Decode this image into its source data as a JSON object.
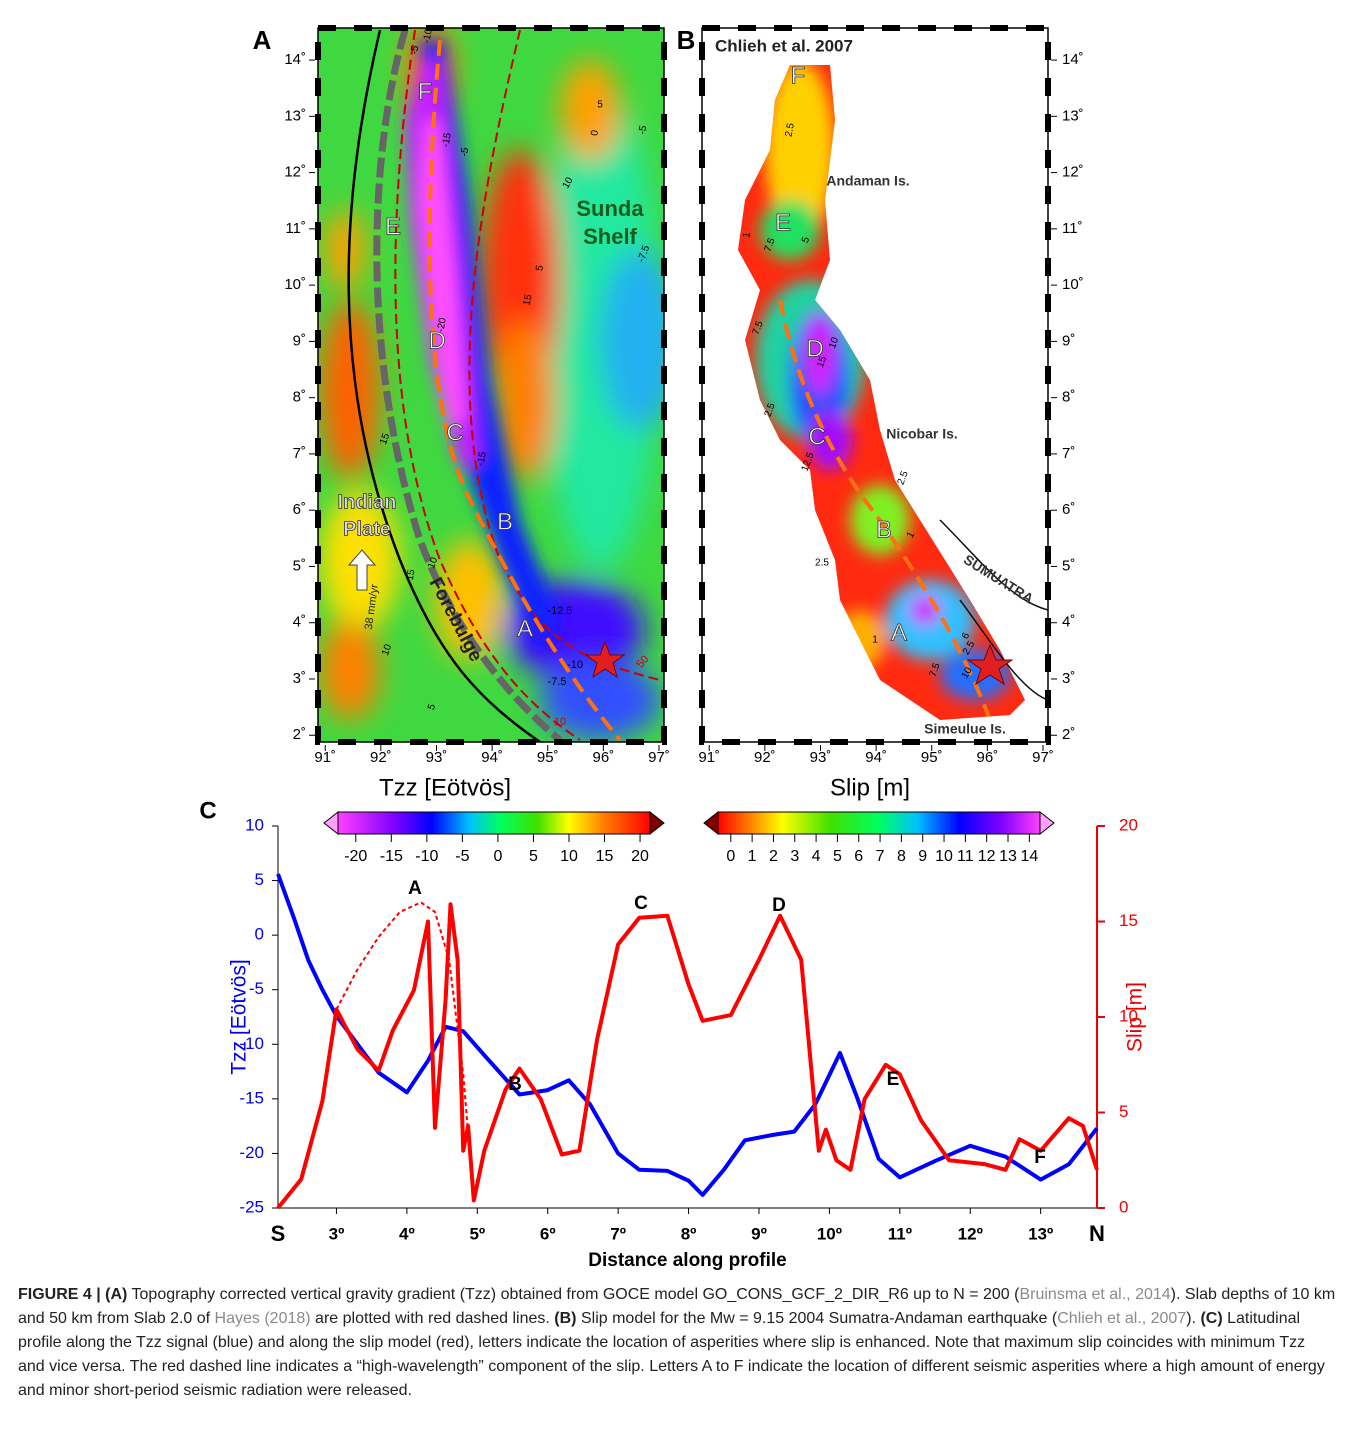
{
  "chart_data": [
    {
      "type": "map",
      "panel": "A",
      "colorbar_title": "Tzz [Eötvös]",
      "xlim": [
        90.87,
        97.09
      ],
      "ylim": [
        1.88,
        14.57
      ],
      "xticks": [
        {
          "value": 91,
          "label": "91˚"
        },
        {
          "value": 92,
          "label": "92˚"
        },
        {
          "value": 93,
          "label": "93˚"
        },
        {
          "value": 94,
          "label": "94˚"
        },
        {
          "value": 95,
          "label": "95˚"
        },
        {
          "value": 96,
          "label": "96˚"
        },
        {
          "value": 97,
          "label": "97˚"
        }
      ],
      "yticks": [
        {
          "value": 2,
          "label": "2˚"
        },
        {
          "value": 3,
          "label": "3˚"
        },
        {
          "value": 4,
          "label": "4˚"
        },
        {
          "value": 5,
          "label": "5˚"
        },
        {
          "value": 6,
          "label": "6˚"
        },
        {
          "value": 7,
          "label": "7˚"
        },
        {
          "value": 8,
          "label": "8˚"
        },
        {
          "value": 9,
          "label": "9˚"
        },
        {
          "value": 10,
          "label": "10˚"
        },
        {
          "value": 11,
          "label": "11˚"
        },
        {
          "value": 12,
          "label": "12˚"
        },
        {
          "value": 13,
          "label": "13˚"
        },
        {
          "value": 14,
          "label": "14˚"
        }
      ],
      "colorbar": {
        "lim": [
          -22.5,
          21.4
        ],
        "ticks": [
          -20,
          -15,
          -10,
          -5,
          0,
          5,
          10,
          15,
          20
        ]
      },
      "annotations": [
        "Sunda",
        "Shelf",
        "Indian",
        "Plate",
        "Forebulge",
        "38 mm/yr",
        "F",
        "E",
        "D",
        "C",
        "B",
        "A",
        "-10",
        "-5",
        "-15",
        "-5",
        "0",
        "5",
        "-5",
        "10",
        "5",
        "15",
        "15",
        "10",
        "15",
        "10",
        "5",
        "-12.5",
        "-10",
        "-7.5",
        "-7.5",
        "-20",
        "-15",
        "50",
        "10"
      ]
    },
    {
      "type": "map",
      "panel": "B",
      "colorbar_title": "Slip [m]",
      "xlim": [
        90.87,
        97.09
      ],
      "ylim": [
        1.88,
        14.57
      ],
      "xticks": [
        {
          "value": 91,
          "label": "91˚"
        },
        {
          "value": 92,
          "label": "92˚"
        },
        {
          "value": 93,
          "label": "93˚"
        },
        {
          "value": 94,
          "label": "94˚"
        },
        {
          "value": 95,
          "label": "95˚"
        },
        {
          "value": 96,
          "label": "96˚"
        },
        {
          "value": 97,
          "label": "97˚"
        }
      ],
      "yticks": [
        {
          "value": 2,
          "label": "2˚"
        },
        {
          "value": 3,
          "label": "3˚"
        },
        {
          "value": 4,
          "label": "4˚"
        },
        {
          "value": 5,
          "label": "5˚"
        },
        {
          "value": 6,
          "label": "6˚"
        },
        {
          "value": 7,
          "label": "7˚"
        },
        {
          "value": 8,
          "label": "8˚"
        },
        {
          "value": 9,
          "label": "9˚"
        },
        {
          "value": 10,
          "label": "10˚"
        },
        {
          "value": 11,
          "label": "11˚"
        },
        {
          "value": 12,
          "label": "12˚"
        },
        {
          "value": 13,
          "label": "13˚"
        },
        {
          "value": 14,
          "label": "14˚"
        }
      ],
      "colorbar": {
        "lim": [
          -0.6,
          14.5
        ],
        "ticks": [
          0,
          1,
          2,
          3,
          4,
          5,
          6,
          7,
          8,
          9,
          10,
          11,
          12,
          13,
          14
        ]
      },
      "annotations": [
        "Chlieh et al. 2007",
        "Andaman Is.",
        "Nicobar Is.",
        "SUMUATRA",
        "Simeulue Is.",
        "F",
        "E",
        "D",
        "C",
        "B",
        "A",
        "2.5",
        "1",
        "7.5",
        "5",
        "7.5",
        "10",
        "15",
        "2.5",
        "12.5",
        "2.5",
        "1",
        "2.5",
        "6",
        "2.5",
        "1",
        "10",
        "7.5"
      ]
    },
    {
      "type": "line",
      "panel": "C",
      "xlabel": "Distance along profile",
      "ylabel": "Tzz [Eötvös]",
      "y2label": "Slip [m]",
      "xlim": [
        2.17,
        13.8
      ],
      "ylim": [
        -25,
        10
      ],
      "y2lim": [
        0,
        20
      ],
      "xticks": [
        {
          "value": 2.17,
          "label": "S"
        },
        {
          "value": 3,
          "label": "3º"
        },
        {
          "value": 4,
          "label": "4º"
        },
        {
          "value": 5,
          "label": "5º"
        },
        {
          "value": 6,
          "label": "6º"
        },
        {
          "value": 7,
          "label": "7º"
        },
        {
          "value": 8,
          "label": "8º"
        },
        {
          "value": 9,
          "label": "9º"
        },
        {
          "value": 10,
          "label": "10º"
        },
        {
          "value": 11,
          "label": "11º"
        },
        {
          "value": 12,
          "label": "12º"
        },
        {
          "value": 13,
          "label": "13º"
        },
        {
          "value": 13.8,
          "label": "N"
        }
      ],
      "yticks": [
        -25,
        -20,
        -15,
        -10,
        -5,
        0,
        5,
        10
      ],
      "y2ticks": [
        0,
        5,
        10,
        15,
        20
      ],
      "series": [
        {
          "color": "#0000ff",
          "x": [
            2.17,
            2.4,
            2.6,
            2.8,
            3.0,
            3.3,
            3.6,
            4.0,
            4.3,
            4.55,
            4.8,
            5.1,
            5.6,
            6.0,
            6.3,
            6.6,
            7.0,
            7.3,
            7.7,
            8.0,
            8.2,
            8.5,
            8.8,
            9.2,
            9.5,
            9.8,
            10.15,
            10.4,
            10.7,
            11.0,
            11.5,
            12.0,
            12.5,
            13.0,
            13.4,
            13.8
          ],
          "values": [
            5.6,
            1.5,
            -2.3,
            -5.0,
            -7.4,
            -10.0,
            -12.6,
            -14.4,
            -11.5,
            -8.4,
            -8.8,
            -11.0,
            -14.6,
            -14.2,
            -13.3,
            -15.5,
            -20.0,
            -21.5,
            -21.6,
            -22.5,
            -23.8,
            -21.5,
            -18.8,
            -18.3,
            -18.0,
            -15.5,
            -10.8,
            -15.0,
            -20.5,
            -22.2,
            -20.7,
            -19.3,
            -20.3,
            -22.4,
            -21.0,
            -17.7
          ]
        },
        {
          "color": "#ff0000",
          "axis": "y2",
          "x": [
            2.17,
            2.5,
            2.8,
            3.0,
            3.3,
            3.6,
            3.8,
            4.1,
            4.3,
            4.4,
            4.55,
            4.62,
            4.72,
            4.8,
            4.87,
            4.95,
            5.1,
            5.4,
            5.6,
            5.9,
            6.2,
            6.45,
            6.7,
            7.0,
            7.3,
            7.7,
            8.0,
            8.2,
            8.6,
            9.0,
            9.3,
            9.6,
            9.85,
            9.95,
            10.1,
            10.3,
            10.5,
            10.8,
            11.0,
            11.3,
            11.7,
            12.2,
            12.5,
            12.7,
            13.0,
            13.4,
            13.6,
            13.8
          ],
          "values": [
            0,
            1.5,
            5.6,
            10.4,
            8.3,
            7.2,
            9.3,
            11.4,
            15.0,
            4.2,
            10.9,
            15.9,
            13.0,
            3.0,
            4.3,
            0.4,
            3.0,
            6.2,
            7.3,
            5.7,
            2.8,
            3.0,
            8.8,
            13.8,
            15.2,
            15.3,
            11.7,
            9.8,
            10.1,
            13.0,
            15.3,
            13.0,
            3.0,
            4.1,
            2.5,
            2.0,
            5.7,
            7.5,
            7.0,
            4.6,
            2.5,
            2.3,
            2.0,
            3.6,
            3.0,
            4.7,
            4.3,
            2.0
          ]
        },
        {
          "color": "#ff0000",
          "axis": "y2",
          "dashed": true,
          "x": [
            3.0,
            3.3,
            3.6,
            3.9,
            4.2,
            4.4,
            4.6,
            4.8,
            4.95
          ],
          "values": [
            10.4,
            12.5,
            14.2,
            15.5,
            16.0,
            15.5,
            13.0,
            7.0,
            0.4
          ]
        }
      ],
      "annotations": [
        "A",
        "B",
        "C",
        "D",
        "E",
        "F"
      ]
    }
  ],
  "figure_caption": [
    {
      "text": "FIGURE 4 | ",
      "style": "bold"
    },
    {
      "text": "(A)",
      "style": "bold"
    },
    {
      "text": " Topography corrected vertical gravity gradient (Tzz) obtained from GOCE model GO_CONS_GCF_2_DIR_R6 up to N = 200 (",
      "style": "plain"
    },
    {
      "text": "Bruinsma et al., 2014",
      "style": "link"
    },
    {
      "text": "). Slab depths of 10 km and 50 km from Slab 2.0 of ",
      "style": "plain"
    },
    {
      "text": "Hayes (2018)",
      "style": "link"
    },
    {
      "text": " are plotted with red dashed lines. ",
      "style": "plain"
    },
    {
      "text": "(B)",
      "style": "bold"
    },
    {
      "text": " Slip model for the Mw = 9.15 2004 Sumatra-Andaman earthquake (",
      "style": "plain"
    },
    {
      "text": "Chlieh et al., 2007",
      "style": "link"
    },
    {
      "text": "). ",
      "style": "plain"
    },
    {
      "text": "(C)",
      "style": "bold"
    },
    {
      "text": " Latitudinal profile along the Tzz signal (blue) and along the slip model (red), letters indicate the location of asperities where slip is enhanced. Note that maximum slip coincides with minimum Tzz and vice versa. The red dashed line indicates a “high-wavelength” component of the slip. Letters A to F indicate the location of different seismic asperities where a high amount of energy and minor short-period seismic radiation were released.",
      "style": "plain"
    }
  ]
}
